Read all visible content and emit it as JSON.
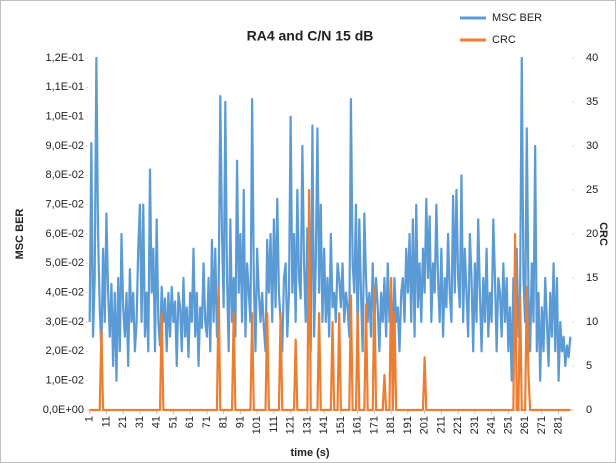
{
  "chart_data": {
    "type": "line",
    "title": "RA4 and C/N 15 dB",
    "x_label": "time (s)",
    "y_label": "MSC BER",
    "y2_label": "CRC",
    "grid": false,
    "legend": "top-right",
    "xlim": [
      0,
      289
    ],
    "xticks": [
      1,
      11,
      21,
      31,
      41,
      51,
      61,
      71,
      81,
      91,
      101,
      111,
      121,
      131,
      141,
      151,
      161,
      171,
      181,
      191,
      201,
      211,
      221,
      231,
      241,
      251,
      261,
      271,
      281
    ],
    "ylim": [
      0,
      0.12
    ],
    "yticks": [
      {
        "value": 0,
        "label": "0,0E+00"
      },
      {
        "value": 0.01,
        "label": "1,0E-02"
      },
      {
        "value": 0.02,
        "label": "2,0E-02"
      },
      {
        "value": 0.03,
        "label": "3,0E-02"
      },
      {
        "value": 0.04,
        "label": "4,0E-02"
      },
      {
        "value": 0.05,
        "label": "5,0E-02"
      },
      {
        "value": 0.06,
        "label": "6,0E-02"
      },
      {
        "value": 0.07,
        "label": "7,0E-02"
      },
      {
        "value": 0.08,
        "label": "8,0E-02"
      },
      {
        "value": 0.09,
        "label": "9,0E-02"
      },
      {
        "value": 0.1,
        "label": "1,0E-01"
      },
      {
        "value": 0.11,
        "label": "1,1E-01"
      },
      {
        "value": 0.12,
        "label": "1,2E-01"
      }
    ],
    "y2lim": [
      0,
      40
    ],
    "y2ticks": [
      0,
      5,
      10,
      15,
      20,
      25,
      30,
      35,
      40
    ],
    "x": [
      1,
      2,
      3,
      4,
      5,
      6,
      7,
      8,
      9,
      10,
      11,
      12,
      13,
      14,
      15,
      16,
      17,
      18,
      19,
      20,
      21,
      22,
      23,
      24,
      25,
      26,
      27,
      28,
      29,
      30,
      31,
      32,
      33,
      34,
      35,
      36,
      37,
      38,
      39,
      40,
      41,
      42,
      43,
      44,
      45,
      46,
      47,
      48,
      49,
      50,
      51,
      52,
      53,
      54,
      55,
      56,
      57,
      58,
      59,
      60,
      61,
      62,
      63,
      64,
      65,
      66,
      67,
      68,
      69,
      70,
      71,
      72,
      73,
      74,
      75,
      76,
      77,
      78,
      79,
      80,
      81,
      82,
      83,
      84,
      85,
      86,
      87,
      88,
      89,
      90,
      91,
      92,
      93,
      94,
      95,
      96,
      97,
      98,
      99,
      100,
      101,
      102,
      103,
      104,
      105,
      106,
      107,
      108,
      109,
      110,
      111,
      112,
      113,
      114,
      115,
      116,
      117,
      118,
      119,
      120,
      121,
      122,
      123,
      124,
      125,
      126,
      127,
      128,
      129,
      130,
      131,
      132,
      133,
      134,
      135,
      136,
      137,
      138,
      139,
      140,
      141,
      142,
      143,
      144,
      145,
      146,
      147,
      148,
      149,
      150,
      151,
      152,
      153,
      154,
      155,
      156,
      157,
      158,
      159,
      160,
      161,
      162,
      163,
      164,
      165,
      166,
      167,
      168,
      169,
      170,
      171,
      172,
      173,
      174,
      175,
      176,
      177,
      178,
      179,
      180,
      181,
      182,
      183,
      184,
      185,
      186,
      187,
      188,
      189,
      190,
      191,
      192,
      193,
      194,
      195,
      196,
      197,
      198,
      199,
      200,
      201,
      202,
      203,
      204,
      205,
      206,
      207,
      208,
      209,
      210,
      211,
      212,
      213,
      214,
      215,
      216,
      217,
      218,
      219,
      220,
      221,
      222,
      223,
      224,
      225,
      226,
      227,
      228,
      229,
      230,
      231,
      232,
      233,
      234,
      235,
      236,
      237,
      238,
      239,
      240,
      241,
      242,
      243,
      244,
      245,
      246,
      247,
      248,
      249,
      250,
      251,
      252,
      253,
      254,
      255,
      256,
      257,
      258,
      259,
      260,
      261,
      262,
      263,
      264,
      265,
      266,
      267,
      268,
      269,
      270,
      271,
      272,
      273,
      274,
      275,
      276,
      277,
      278,
      279,
      280,
      281,
      282,
      283,
      284,
      285,
      286,
      287,
      288
    ],
    "series": [
      {
        "name": "MSC BER",
        "color": "#5b9bd5",
        "axis": "y",
        "values": [
          0.03,
          0.091,
          0.025,
          0.045,
          0.12,
          0.06,
          0.035,
          0.02,
          0.055,
          0.03,
          0.067,
          0.04,
          0.025,
          0.043,
          0.015,
          0.04,
          0.01,
          0.045,
          0.02,
          0.06,
          0.035,
          0.025,
          0.04,
          0.015,
          0.048,
          0.03,
          0.04,
          0.02,
          0.03,
          0.055,
          0.07,
          0.03,
          0.07,
          0.025,
          0.04,
          0.02,
          0.082,
          0.04,
          0.055,
          0.02,
          0.065,
          0.03,
          0.022,
          0.042,
          0.03,
          0.038,
          0.02,
          0.04,
          0.025,
          0.042,
          0.03,
          0.037,
          0.015,
          0.04,
          0.035,
          0.02,
          0.045,
          0.025,
          0.035,
          0.018,
          0.04,
          0.03,
          0.055,
          0.025,
          0.04,
          0.015,
          0.035,
          0.028,
          0.05,
          0.03,
          0.025,
          0.045,
          0.02,
          0.058,
          0.03,
          0.055,
          0.025,
          0.04,
          0.107,
          0.06,
          0.035,
          0.105,
          0.045,
          0.02,
          0.065,
          0.03,
          0.045,
          0.025,
          0.085,
          0.04,
          0.06,
          0.03,
          0.075,
          0.025,
          0.05,
          0.04,
          0.03,
          0.106,
          0.045,
          0.02,
          0.055,
          0.04,
          0.03,
          0.04,
          0.028,
          0.02,
          0.058,
          0.04,
          0.06,
          0.03,
          0.065,
          0.035,
          0.072,
          0.04,
          0.03,
          0.02,
          0.045,
          0.05,
          0.025,
          0.04,
          0.1,
          0.04,
          0.06,
          0.03,
          0.075,
          0.045,
          0.038,
          0.09,
          0.05,
          0.03,
          0.062,
          0.035,
          0.02,
          0.097,
          0.025,
          0.05,
          0.096,
          0.04,
          0.07,
          0.03,
          0.055,
          0.03,
          0.045,
          0.025,
          0.06,
          0.035,
          0.04,
          0.03,
          0.05,
          0.045,
          0.035,
          0.05,
          0.03,
          0.04,
          0.035,
          0.025,
          0.106,
          0.05,
          0.04,
          0.07,
          0.025,
          0.065,
          0.04,
          0.02,
          0.067,
          0.045,
          0.03,
          0.04,
          0.025,
          0.05,
          0.03,
          0.045,
          0.035,
          0.02,
          0.04,
          0.03,
          0.045,
          0.025,
          0.05,
          0.03,
          0.04,
          0.025,
          0.045,
          0.03,
          0.035,
          0.02,
          0.04,
          0.045,
          0.03,
          0.055,
          0.04,
          0.06,
          0.03,
          0.065,
          0.025,
          0.07,
          0.035,
          0.05,
          0.03,
          0.055,
          0.04,
          0.072,
          0.045,
          0.066,
          0.03,
          0.05,
          0.04,
          0.07,
          0.045,
          0.03,
          0.055,
          0.025,
          0.045,
          0.035,
          0.06,
          0.04,
          0.03,
          0.073,
          0.04,
          0.075,
          0.045,
          0.035,
          0.08,
          0.03,
          0.055,
          0.04,
          0.025,
          0.06,
          0.045,
          0.02,
          0.05,
          0.03,
          0.065,
          0.04,
          0.02,
          0.045,
          0.03,
          0.055,
          0.025,
          0.04,
          0.03,
          0.065,
          0.045,
          0.02,
          0.045,
          0.04,
          0.025,
          0.05,
          0.03,
          0.045,
          0.02,
          0.035,
          0.01,
          0.045,
          0.03,
          0.055,
          0.025,
          0.04,
          0.12,
          0.045,
          0.03,
          0.096,
          0.04,
          0.02,
          0.05,
          0.03,
          0.09,
          0.02,
          0.04,
          0.01,
          0.035,
          0.02,
          0.045,
          0.03,
          0.015,
          0.04,
          0.025,
          0.05,
          0.02,
          0.045,
          0.01,
          0.03,
          0.02,
          0.025,
          0.015,
          0.022,
          0.018,
          0.025
        ]
      },
      {
        "name": "CRC",
        "color": "#ed7d31",
        "axis": "y2",
        "values": [
          0,
          0,
          0,
          0,
          0,
          0,
          0,
          9,
          0,
          0,
          0,
          0,
          0,
          0,
          0,
          0,
          0,
          0,
          0,
          0,
          0,
          0,
          0,
          0,
          0,
          0,
          0,
          0,
          0,
          0,
          0,
          0,
          0,
          0,
          0,
          0,
          0,
          0,
          0,
          0,
          0,
          0,
          0,
          11,
          0,
          0,
          0,
          0,
          0,
          0,
          0,
          0,
          0,
          0,
          0,
          0,
          0,
          0,
          0,
          0,
          0,
          0,
          0,
          0,
          0,
          0,
          0,
          0,
          0,
          0,
          0,
          0,
          0,
          0,
          0,
          0,
          0,
          14,
          0,
          0,
          0,
          0,
          0,
          0,
          0,
          0,
          11,
          0,
          0,
          0,
          0,
          0,
          0,
          0,
          0,
          0,
          0,
          11,
          0,
          0,
          0,
          0,
          0,
          0,
          0,
          0,
          11,
          0,
          0,
          0,
          0,
          0,
          0,
          0,
          11,
          0,
          0,
          0,
          0,
          0,
          0,
          0,
          0,
          8,
          0,
          0,
          0,
          0,
          0,
          0,
          0,
          25,
          0,
          0,
          0,
          0,
          0,
          11,
          0,
          0,
          0,
          0,
          0,
          0,
          0,
          10,
          0,
          0,
          0,
          11,
          0,
          0,
          0,
          0,
          0,
          0,
          13,
          0,
          0,
          0,
          11,
          0,
          0,
          0,
          0,
          12,
          0,
          0,
          0,
          0,
          14,
          0,
          0,
          0,
          0,
          0,
          4,
          0,
          0,
          0,
          15,
          0,
          11,
          0,
          0,
          0,
          0,
          0,
          0,
          0,
          0,
          0,
          0,
          0,
          0,
          0,
          0,
          0,
          0,
          0,
          6,
          0,
          0,
          0,
          0,
          0,
          0,
          0,
          0,
          0,
          0,
          0,
          0,
          0,
          0,
          0,
          0,
          0,
          0,
          0,
          0,
          0,
          0,
          0,
          0,
          0,
          0,
          0,
          0,
          0,
          0,
          0,
          0,
          0,
          0,
          0,
          0,
          0,
          0,
          0,
          0,
          0,
          0,
          0,
          0,
          0,
          0,
          0,
          0,
          0,
          0,
          0,
          0,
          0,
          20,
          0,
          0,
          13,
          0,
          0,
          0,
          14,
          4,
          0,
          0,
          0,
          0,
          0,
          0,
          0,
          0,
          0,
          0,
          0,
          0,
          0,
          0,
          0,
          0,
          0,
          0,
          0,
          0,
          0,
          0,
          0,
          0,
          0
        ]
      }
    ]
  }
}
